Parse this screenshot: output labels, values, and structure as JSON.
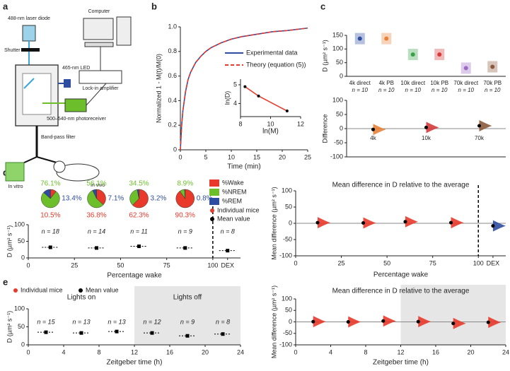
{
  "panels": [
    "a",
    "b",
    "c",
    "d",
    "e"
  ],
  "diagram": {
    "labels": [
      "488-nm laser diode",
      "Shutter",
      "Computer",
      "465-nm LED",
      "Lock-in amplifier",
      "Band-pass filter",
      "500–540-nm photoreceiver",
      "In vitro",
      "In vivo"
    ]
  },
  "chart_data": [
    {
      "type": "line",
      "ylabel": "Normalized 1 - M(t)/M(0)",
      "xlabel": "Time (min)",
      "xlim": [
        0,
        25
      ],
      "xticks": [
        0,
        5,
        10,
        15,
        20,
        25
      ],
      "ylim": [
        0,
        1
      ],
      "yticks": [
        0,
        0.2,
        0.4,
        0.6,
        0.8,
        {
          "value": 1,
          "label": "1.0"
        }
      ],
      "x": [
        0,
        0.25,
        0.5,
        1,
        1.5,
        2,
        3,
        4,
        5,
        6,
        8,
        10,
        12,
        15,
        18,
        21,
        25
      ],
      "series": [
        {
          "name": "Experimental data",
          "color": "#2e4da0",
          "dash": false,
          "values": [
            0,
            0.2,
            0.32,
            0.47,
            0.57,
            0.63,
            0.71,
            0.76,
            0.8,
            0.83,
            0.87,
            0.9,
            0.92,
            0.94,
            0.96,
            0.97,
            0.99
          ]
        },
        {
          "name": "Theory (equation (5))",
          "color": "#e8392a",
          "dash": true,
          "values": [
            0,
            0.2,
            0.32,
            0.47,
            0.57,
            0.63,
            0.71,
            0.76,
            0.8,
            0.83,
            0.87,
            0.9,
            0.92,
            0.94,
            0.96,
            0.97,
            0.99
          ]
        }
      ]
    },
    {
      "type": "line",
      "xlabel": "ln(M)",
      "ylabel": "ln(D)",
      "xlim": [
        8,
        12
      ],
      "xticks": [
        8,
        10,
        12
      ],
      "ylim": [
        3.3,
        5.3
      ],
      "yticks": [
        4,
        5
      ],
      "x": [
        8.3,
        9.2,
        11.1
      ],
      "series": [
        {
          "color": "#e8392a",
          "marker_color": "#000000",
          "markers": true,
          "values": [
            4.9,
            4.4,
            3.6
          ]
        }
      ]
    },
    {
      "type": "strip",
      "ylabel": "D (µm² s⁻¹)",
      "ylim": [
        0,
        150
      ],
      "yticks": [
        0,
        50,
        100,
        150
      ],
      "categories": [
        "4k direct",
        "4k PB",
        "10k direct",
        "10k PB",
        "70k direct",
        "70k PB"
      ],
      "n_labels": [
        "n = 10",
        "n = 10",
        "n = 10",
        "n = 10",
        "n = 10",
        "n = 10"
      ],
      "values": [
        138,
        138,
        80,
        80,
        30,
        35
      ],
      "colors": [
        "#2e4da0",
        "#e8823a",
        "#3aa04a",
        "#d43a3a",
        "#9b6bc4",
        "#8b5a3c"
      ]
    },
    {
      "type": "strip",
      "style": "violin",
      "ylabel": "Difference",
      "ylim": [
        -100,
        100
      ],
      "yticks": [
        -100,
        -50,
        0,
        50,
        100
      ],
      "hline": 0,
      "categories": [
        "4k",
        "10k",
        "70k"
      ],
      "values": [
        -3,
        4,
        10
      ],
      "colors": [
        "#e8823a",
        "#d43a3a",
        "#8b5a3c"
      ]
    },
    {
      "type": "scatter",
      "ylabel": "D (µm² s⁻¹)",
      "xlabel": "Percentage wake",
      "xlim": [
        0,
        115
      ],
      "xticks": [
        0,
        25,
        50,
        75,
        100,
        {
          "value": 108,
          "label": "DEX"
        }
      ],
      "ylim": [
        0,
        100
      ],
      "yticks": [
        0,
        50,
        100
      ],
      "vline": 100,
      "x": [
        12,
        37,
        60,
        85,
        108
      ],
      "n_labels": [
        "n = 18",
        "n = 14",
        "n = 11",
        "n = 9",
        "n = 8"
      ],
      "legend_extra": {
        "name": "Individual mice",
        "color": "#e8392a"
      },
      "series": [
        {
          "name": "Mean value",
          "color": "#000000",
          "values": [
            32,
            30,
            35,
            30,
            22
          ]
        }
      ],
      "pies": {
        "series": [
          {
            "name": "%Wake",
            "color": "#e8392a",
            "values": [
              10.5,
              36.8,
              62.3,
              90.3
            ],
            "value_labels": [
              "10.5%",
              "36.8%",
              "62.3%",
              "90.3%"
            ]
          },
          {
            "name": "%NREM",
            "color": "#6cbf2a",
            "values": [
              76.1,
              56.1,
              34.5,
              8.9
            ],
            "value_labels": [
              "76.1%",
              "56.1%",
              "34.5%",
              "8.9%"
            ]
          },
          {
            "name": "%REM",
            "color": "#2e4da0",
            "values": [
              13.4,
              7.1,
              3.2,
              0.8
            ],
            "value_labels": [
              "13.4%",
              "7.1%",
              "3.2%",
              "0.8%"
            ]
          }
        ]
      }
    },
    {
      "type": "scatter",
      "style": "violin",
      "title": "Mean difference in D relative to the average",
      "ylabel": "Mean difference (µm² s⁻¹)",
      "xlabel": "Percentage wake",
      "xlim": [
        0,
        115
      ],
      "xticks": [
        0,
        25,
        50,
        75,
        100,
        {
          "value": 108,
          "label": "DEX"
        }
      ],
      "ylim": [
        -100,
        100
      ],
      "yticks": [
        -100,
        -50,
        0,
        50,
        100
      ],
      "hline": 0,
      "vline": 100,
      "x": [
        12,
        37,
        60,
        85,
        108
      ],
      "values": [
        2,
        1,
        5,
        2,
        -8
      ],
      "colors": [
        "#e8392a",
        "#e8392a",
        "#e8392a",
        "#e8392a",
        "#2e4da0"
      ]
    },
    {
      "type": "scatter",
      "ylabel": "D (µm² s⁻¹)",
      "xlabel": "Zeitgeber time (h)",
      "xlim": [
        0,
        24
      ],
      "xticks": [
        0,
        4,
        8,
        12,
        16,
        20,
        24
      ],
      "ylim": [
        0,
        100
      ],
      "yticks": [
        0,
        50,
        100
      ],
      "regions": [
        {
          "label": "Lights on",
          "from": 0,
          "to": 12
        },
        {
          "label": "Lights off",
          "from": 12,
          "to": 24,
          "color": "#e6e6e6"
        }
      ],
      "x": [
        2,
        6,
        10,
        14,
        18,
        22
      ],
      "n_labels": [
        "n = 15",
        "n = 13",
        "n = 13",
        "n = 12",
        "n = 9",
        "n = 8"
      ],
      "legend_extra": {
        "name": "Individual mice",
        "color": "#e8392a"
      },
      "series": [
        {
          "name": "Mean value",
          "color": "#000000",
          "values": [
            35,
            33,
            37,
            33,
            25,
            30
          ]
        }
      ]
    },
    {
      "type": "scatter",
      "style": "violin",
      "title": "Mean difference in D relative to the average",
      "ylabel": "Mean difference (µm² s⁻¹)",
      "xlabel": "Zeitgeber time (h)",
      "xlim": [
        0,
        24
      ],
      "xticks": [
        0,
        4,
        8,
        12,
        16,
        20,
        24
      ],
      "ylim": [
        -100,
        100
      ],
      "yticks": [
        -100,
        -50,
        0,
        50,
        100
      ],
      "hline": 0,
      "regions": [
        {
          "from": 12,
          "to": 24,
          "color": "#e6e6e6"
        }
      ],
      "x": [
        2,
        6,
        10,
        14,
        18,
        22
      ],
      "values": [
        1,
        0,
        4,
        1,
        -7,
        -2
      ],
      "colors": [
        "#e8392a",
        "#e8392a",
        "#e8392a",
        "#e8392a",
        "#e8392a",
        "#e8392a"
      ]
    }
  ]
}
